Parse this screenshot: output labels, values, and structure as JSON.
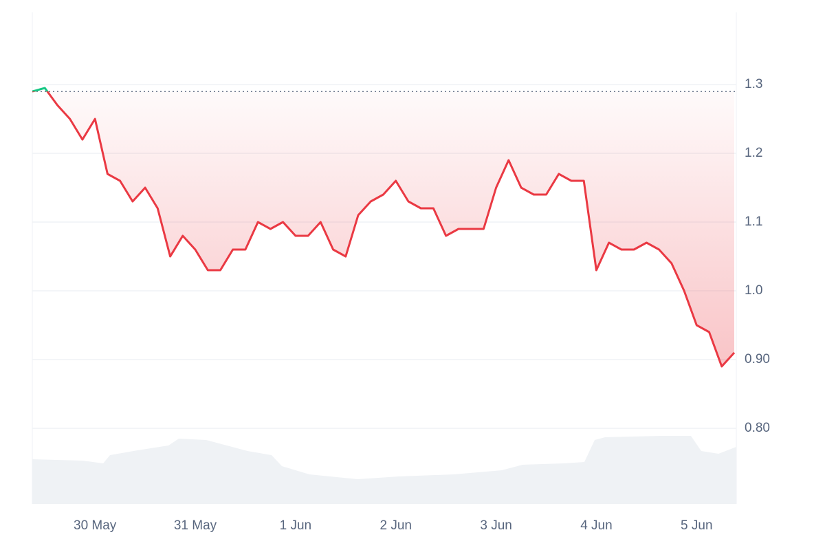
{
  "chart_data": {
    "type": "line",
    "categories": [
      null,
      null,
      null,
      null,
      null,
      "30 May",
      null,
      null,
      null,
      null,
      null,
      null,
      null,
      "31 May",
      null,
      null,
      null,
      null,
      null,
      null,
      null,
      "1 Jun",
      null,
      null,
      null,
      null,
      null,
      null,
      null,
      "2 Jun",
      null,
      null,
      null,
      null,
      null,
      null,
      null,
      "3 Jun",
      null,
      null,
      null,
      null,
      null,
      null,
      null,
      "4 Jun",
      null,
      null,
      null,
      null,
      null,
      null,
      null,
      "5 Jun",
      null,
      null,
      null
    ],
    "series": [
      {
        "color": "#ea3943",
        "up_color": "#16c784",
        "values": [
          1.29,
          1.295,
          1.27,
          1.25,
          1.22,
          1.25,
          1.17,
          1.16,
          1.13,
          1.15,
          1.12,
          1.05,
          1.08,
          1.06,
          1.03,
          1.03,
          1.06,
          1.06,
          1.1,
          1.09,
          1.1,
          1.08,
          1.08,
          1.1,
          1.06,
          1.05,
          1.11,
          1.13,
          1.14,
          1.16,
          1.13,
          1.12,
          1.12,
          1.08,
          1.09,
          1.09,
          1.09,
          1.15,
          1.19,
          1.15,
          1.14,
          1.14,
          1.17,
          1.16,
          1.16,
          1.03,
          1.07,
          1.06,
          1.06,
          1.07,
          1.06,
          1.04,
          1.0,
          0.95,
          0.94,
          0.89,
          0.91
        ]
      }
    ],
    "baseline": 1.29,
    "ylim": [
      0.69,
      1.405
    ],
    "yticks": [
      {
        "value": 0.8,
        "label": "0.80"
      },
      {
        "value": 0.9,
        "label": "0.90"
      },
      {
        "value": 1.0,
        "label": "1.0"
      },
      1.1,
      1.2,
      1.3
    ],
    "grid": true
  }
}
